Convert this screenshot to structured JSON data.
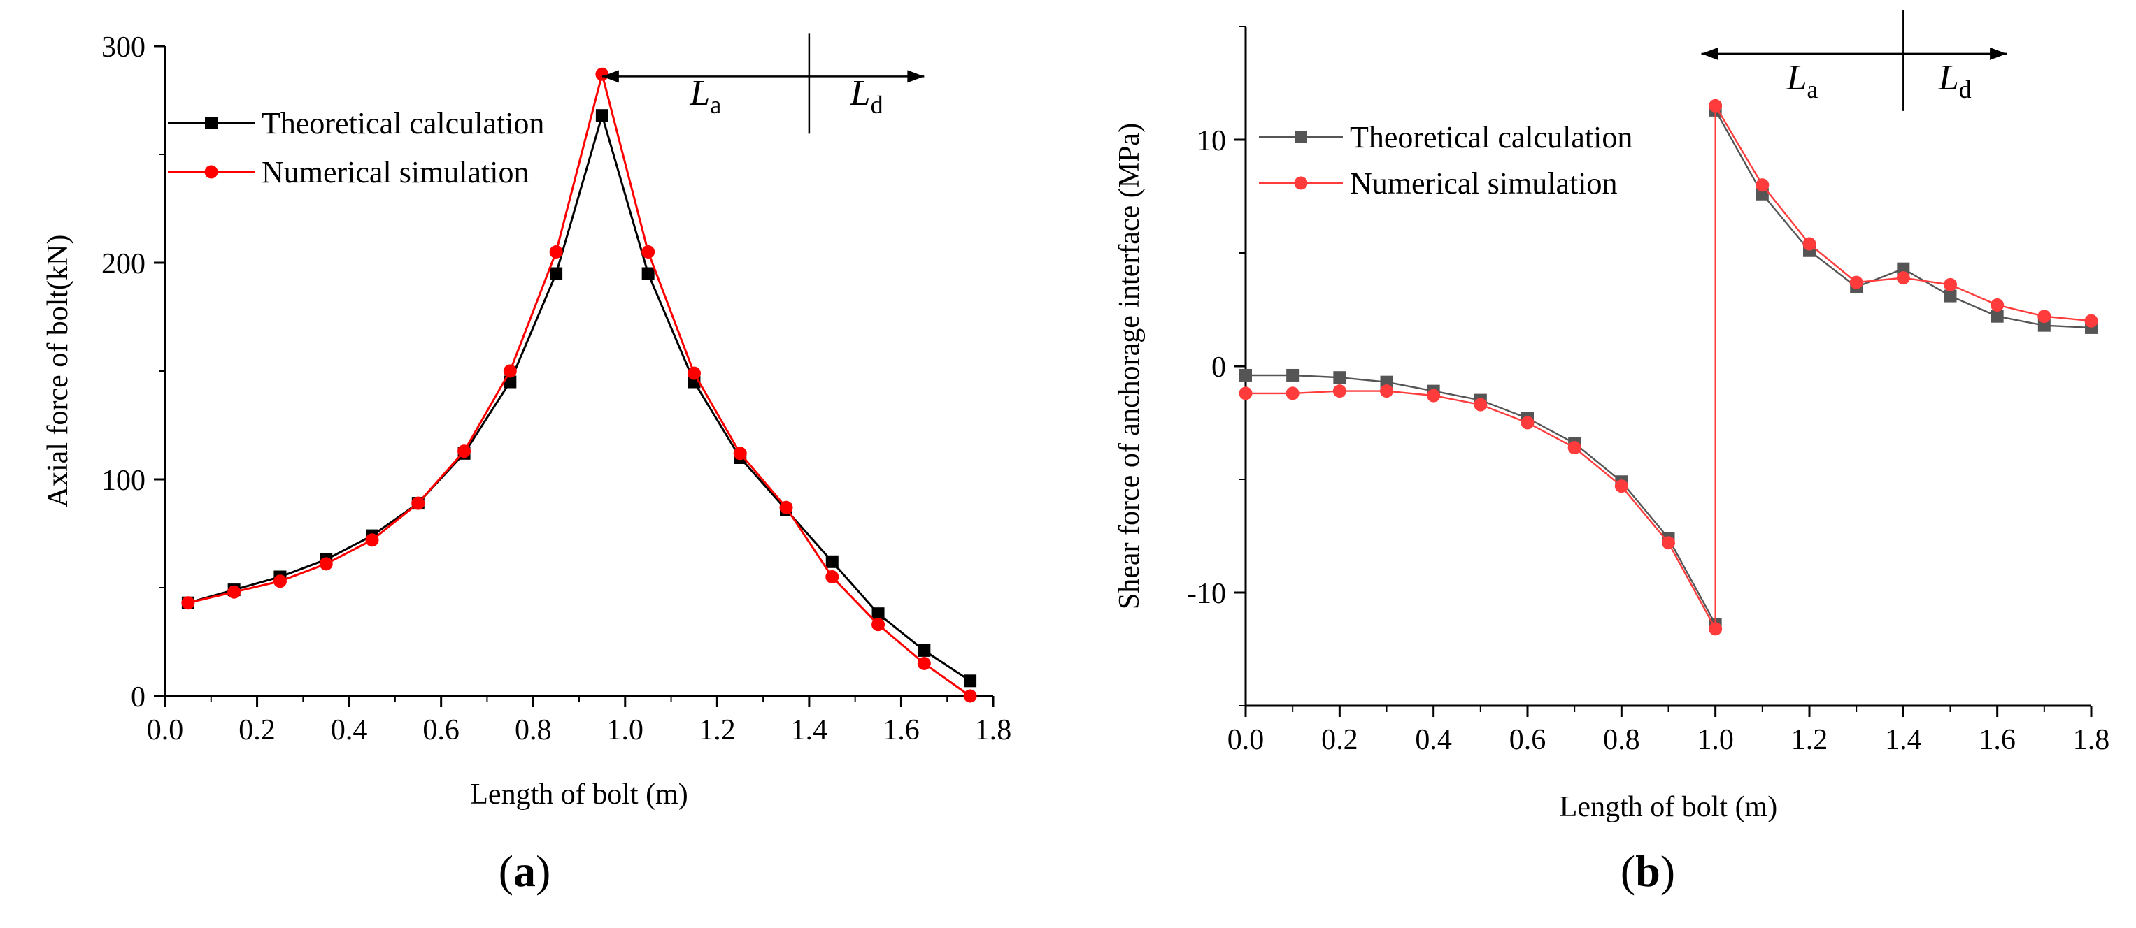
{
  "chart_data": [
    {
      "type": "line",
      "panel_label": "a",
      "title": "",
      "xlabel": "Length of bolt (m)",
      "ylabel": "Axial force of bolt(kN)",
      "xlim": [
        0.0,
        1.8
      ],
      "ylim": [
        0,
        300
      ],
      "xticks": [
        "0.0",
        "0.2",
        "0.4",
        "0.6",
        "0.8",
        "1.0",
        "1.2",
        "1.4",
        "1.6",
        "1.8"
      ],
      "yticks": [
        "0",
        "100",
        "200",
        "300"
      ],
      "grid": false,
      "legend_position": "upper-left",
      "annotations": [
        {
          "text": "L",
          "subscript": "a"
        },
        {
          "text": "L",
          "subscript": "d"
        }
      ],
      "annotation_divider_x": 1.4,
      "annotation_x_range": [
        0.95,
        1.65
      ],
      "annotation_y": 286,
      "series": [
        {
          "name": "Theoretical calculation",
          "color": "#000000",
          "marker": "square",
          "x": [
            0.05,
            0.15,
            0.25,
            0.35,
            0.45,
            0.55,
            0.65,
            0.75,
            0.85,
            0.95,
            1.05,
            1.15,
            1.25,
            1.35,
            1.45,
            1.55,
            1.65,
            1.75
          ],
          "y": [
            43,
            49,
            55,
            63,
            74,
            89,
            112,
            145,
            195,
            268,
            195,
            145,
            110,
            86,
            62,
            38,
            21,
            7
          ]
        },
        {
          "name": "Numerical simulation",
          "color": "#ff0000",
          "marker": "circle",
          "x": [
            0.05,
            0.15,
            0.25,
            0.35,
            0.45,
            0.55,
            0.65,
            0.75,
            0.85,
            0.95,
            1.05,
            1.15,
            1.25,
            1.35,
            1.45,
            1.55,
            1.65,
            1.75
          ],
          "y": [
            43,
            48,
            53,
            61,
            72,
            89,
            113,
            150,
            205,
            287,
            205,
            149,
            112,
            87,
            55,
            33,
            15,
            0
          ]
        }
      ]
    },
    {
      "type": "line",
      "panel_label": "b",
      "title": "",
      "xlabel": "Length of bolt (m)",
      "ylabel": "Shear force of anchorage interface (MPa)",
      "xlim": [
        0.0,
        1.8
      ],
      "ylim": [
        -15,
        15
      ],
      "xticks": [
        "0.0",
        "0.2",
        "0.4",
        "0.6",
        "0.8",
        "1.0",
        "1.2",
        "1.4",
        "1.6",
        "1.8"
      ],
      "yticks": [
        "-10",
        "0",
        "10"
      ],
      "grid": false,
      "legend_position": "upper-left",
      "annotations": [
        {
          "text": "L",
          "subscript": "a"
        },
        {
          "text": "L",
          "subscript": "d"
        }
      ],
      "annotation_divider_x": 1.4,
      "annotation_x_range": [
        0.97,
        1.62
      ],
      "annotation_y": 13.8,
      "series": [
        {
          "name": "Theoretical calculation",
          "color": "#555555",
          "marker": "square",
          "x": [
            0.0,
            0.1,
            0.2,
            0.3,
            0.4,
            0.5,
            0.6,
            0.7,
            0.8,
            0.9,
            1.0,
            1.0,
            1.1,
            1.2,
            1.3,
            1.4,
            1.5,
            1.6,
            1.7,
            1.8
          ],
          "y": [
            -0.4,
            -0.4,
            -0.5,
            -0.7,
            -1.1,
            -1.5,
            -2.3,
            -3.4,
            -5.1,
            -7.6,
            -11.4,
            11.3,
            7.6,
            5.1,
            3.5,
            4.3,
            3.1,
            2.2,
            1.8,
            1.7
          ]
        },
        {
          "name": "Numerical simulation",
          "color": "#ff3b3b",
          "marker": "circle",
          "x": [
            0.0,
            0.1,
            0.2,
            0.3,
            0.4,
            0.5,
            0.6,
            0.7,
            0.8,
            0.9,
            1.0,
            1.0,
            1.1,
            1.2,
            1.3,
            1.4,
            1.5,
            1.6,
            1.7,
            1.8
          ],
          "y": [
            -1.2,
            -1.2,
            -1.1,
            -1.1,
            -1.3,
            -1.7,
            -2.5,
            -3.6,
            -5.3,
            -7.8,
            -11.6,
            11.5,
            8.0,
            5.4,
            3.7,
            3.9,
            3.6,
            2.7,
            2.2,
            2.0
          ]
        }
      ]
    }
  ]
}
